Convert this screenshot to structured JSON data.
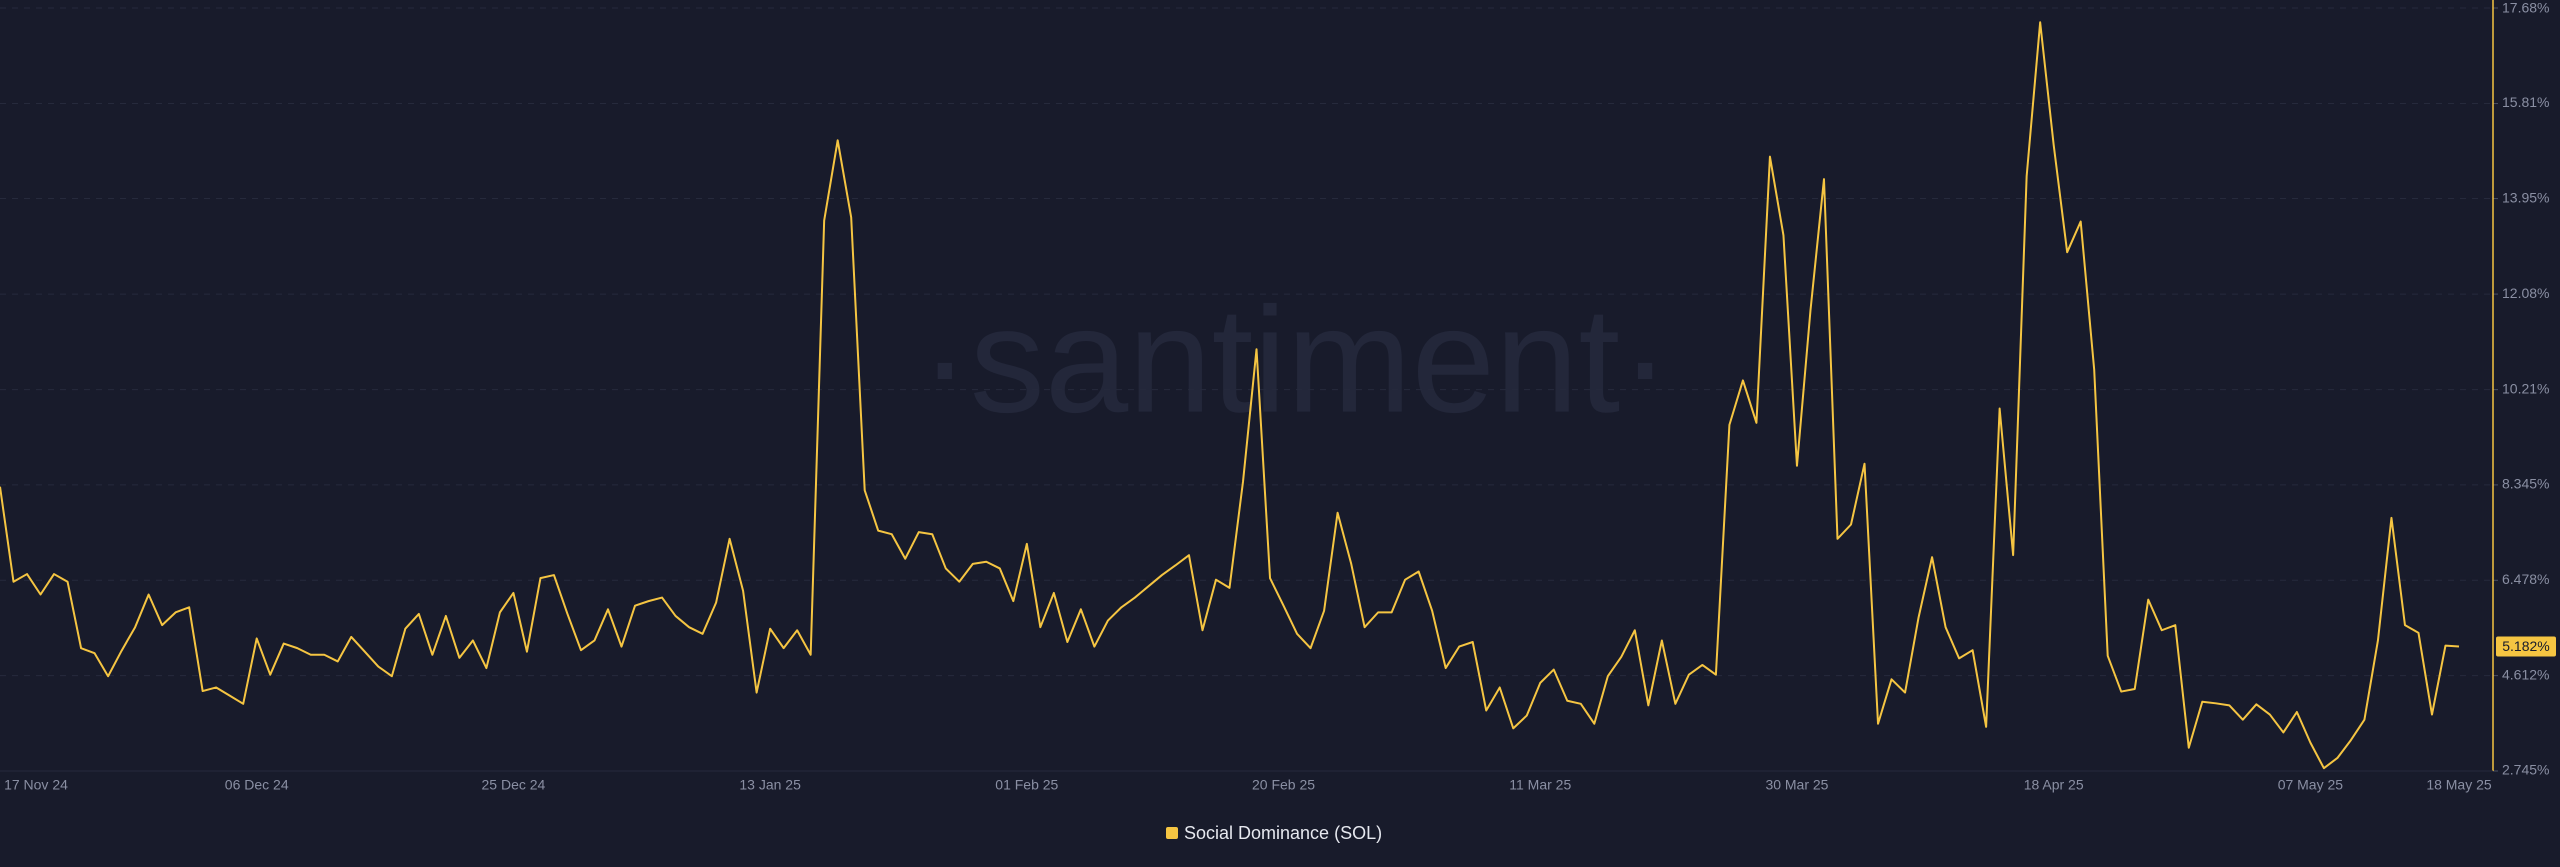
{
  "chart_data": {
    "type": "line",
    "watermark": "·santiment·",
    "categories": [
      "17 Nov 24",
      null,
      null,
      null,
      null,
      null,
      null,
      null,
      null,
      null,
      null,
      null,
      null,
      null,
      null,
      null,
      null,
      null,
      null,
      "06 Dec 24",
      null,
      null,
      null,
      null,
      null,
      null,
      null,
      null,
      null,
      null,
      null,
      null,
      null,
      null,
      null,
      null,
      null,
      null,
      "25 Dec 24",
      null,
      null,
      null,
      null,
      null,
      null,
      null,
      null,
      null,
      null,
      null,
      null,
      null,
      null,
      null,
      null,
      null,
      null,
      "13 Jan 25",
      null,
      null,
      null,
      null,
      null,
      null,
      null,
      null,
      null,
      null,
      null,
      null,
      null,
      null,
      null,
      null,
      null,
      null,
      "01 Feb 25",
      null,
      null,
      null,
      null,
      null,
      null,
      null,
      null,
      null,
      null,
      null,
      null,
      null,
      null,
      null,
      null,
      null,
      null,
      "20 Feb 25",
      null,
      null,
      null,
      null,
      null,
      null,
      null,
      null,
      null,
      null,
      null,
      null,
      null,
      null,
      null,
      null,
      null,
      null,
      "11 Mar 25",
      null,
      null,
      null,
      null,
      null,
      null,
      null,
      null,
      null,
      null,
      null,
      null,
      null,
      null,
      null,
      null,
      null,
      null,
      "30 Mar 25",
      null,
      null,
      null,
      null,
      null,
      null,
      null,
      null,
      null,
      null,
      null,
      null,
      null,
      null,
      null,
      null,
      null,
      null,
      "18 Apr 25",
      null,
      null,
      null,
      null,
      null,
      null,
      null,
      null,
      null,
      null,
      null,
      null,
      null,
      null,
      null,
      null,
      null,
      null,
      "07 May 25",
      null,
      null,
      null,
      null,
      null,
      null,
      null,
      null,
      null,
      null,
      "18 May 25"
    ],
    "series": [
      {
        "name": "Social Dominance (SOL)",
        "color": "#f5c542",
        "values": [
          8.31,
          6.45,
          6.6,
          6.2,
          6.6,
          6.45,
          5.15,
          5.05,
          4.6,
          5.1,
          5.56,
          6.2,
          5.6,
          5.85,
          5.95,
          4.31,
          4.38,
          4.22,
          4.06,
          5.34,
          4.63,
          5.24,
          5.15,
          5.02,
          5.02,
          4.89,
          5.37,
          5.08,
          4.79,
          4.6,
          5.53,
          5.82,
          5.02,
          5.78,
          4.96,
          5.3,
          4.76,
          5.85,
          6.23,
          5.08,
          6.52,
          6.58,
          5.82,
          5.11,
          5.3,
          5.91,
          5.18,
          5.98,
          6.07,
          6.14,
          5.78,
          5.56,
          5.43,
          6.04,
          7.29,
          6.27,
          4.28,
          5.53,
          5.15,
          5.5,
          5.02,
          13.52,
          15.09,
          13.58,
          8.24,
          7.45,
          7.38,
          6.9,
          7.42,
          7.38,
          6.71,
          6.45,
          6.8,
          6.84,
          6.71,
          6.07,
          7.19,
          5.56,
          6.23,
          5.27,
          5.91,
          5.18,
          5.69,
          5.95,
          6.14,
          6.36,
          6.58,
          6.77,
          6.97,
          5.5,
          6.49,
          6.33,
          8.41,
          11.0,
          6.52,
          5.98,
          5.43,
          5.15,
          5.88,
          7.8,
          6.81,
          5.56,
          5.85,
          5.85,
          6.49,
          6.65,
          5.88,
          4.76,
          5.18,
          5.27,
          3.93,
          4.38,
          3.58,
          3.83,
          4.47,
          4.73,
          4.12,
          4.06,
          3.67,
          4.6,
          4.98,
          5.5,
          4.03,
          5.3,
          4.06,
          4.63,
          4.82,
          4.63,
          9.52,
          10.39,
          9.56,
          14.77,
          13.23,
          8.72,
          11.76,
          14.33,
          7.29,
          7.57,
          8.76,
          3.67,
          4.54,
          4.28,
          5.75,
          6.93,
          5.56,
          4.95,
          5.11,
          3.61,
          9.84,
          6.97,
          14.39,
          17.4,
          15.0,
          12.9,
          13.5,
          10.6,
          5.0,
          4.3,
          4.35,
          6.1,
          5.5,
          5.6,
          3.2,
          4.1,
          4.07,
          4.03,
          3.75,
          4.05,
          3.85,
          3.5,
          3.9,
          3.3,
          2.8,
          3.0,
          3.35,
          3.75,
          5.3,
          7.7,
          5.6,
          5.45,
          3.85,
          5.2,
          5.182
        ]
      }
    ],
    "last_value_label": "5.182%",
    "ylim": [
      2.745,
      17.68
    ],
    "yticks": [
      {
        "value": 2.745,
        "label": "2.745%"
      },
      {
        "value": 4.612,
        "label": "4.612%"
      },
      {
        "value": 6.478,
        "label": "6.478%"
      },
      {
        "value": 8.345,
        "label": "8.345%"
      },
      {
        "value": 10.21,
        "label": "10.21%"
      },
      {
        "value": 12.08,
        "label": "12.08%"
      },
      {
        "value": 13.95,
        "label": "13.95%"
      },
      {
        "value": 15.81,
        "label": "15.81%"
      },
      {
        "value": 17.68,
        "label": "17.68%"
      }
    ],
    "grid": true
  }
}
